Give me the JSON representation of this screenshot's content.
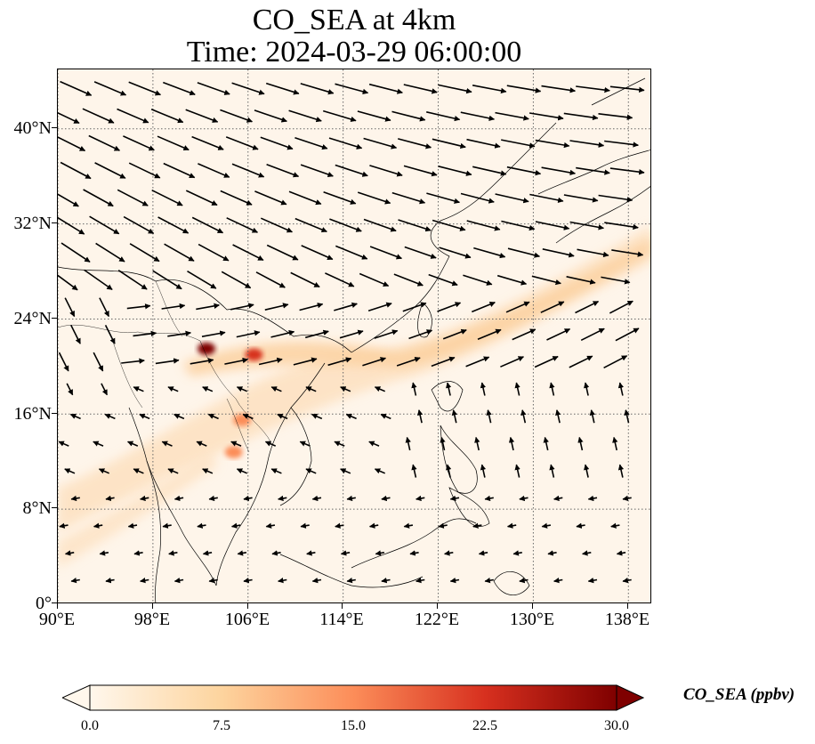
{
  "title": {
    "line1": "CO_SEA at 4km",
    "line2": "Time: 2024-03-29 06:00:00"
  },
  "map": {
    "lon_range": [
      90,
      140
    ],
    "lat_range": [
      0,
      45
    ],
    "lon_ticks": [
      90,
      98,
      106,
      114,
      122,
      130,
      138
    ],
    "lat_ticks": [
      0,
      8,
      16,
      24,
      32,
      40
    ],
    "lon_tick_labels": [
      "90°E",
      "98°E",
      "106°E",
      "114°E",
      "122°E",
      "130°E",
      "138°E"
    ],
    "lat_tick_labels": [
      "0°",
      "8°N",
      "16°N",
      "24°N",
      "32°N",
      "40°N"
    ],
    "gridlines": true,
    "features": [
      "coastlines",
      "country-borders",
      "wind-vectors",
      "co-concentration-field"
    ]
  },
  "colorbar": {
    "label": "CO_SEA (ppbv)",
    "min": 0,
    "max": 30,
    "ticks": [
      "0.0",
      "7.5",
      "15.0",
      "22.5",
      "30.0"
    ],
    "colormap": "OrRd",
    "colors": [
      "#fff7ec",
      "#fdd49e",
      "#fc8d59",
      "#d7301f",
      "#7f0000"
    ],
    "extend": "both"
  },
  "features": {
    "plume": {
      "description": "elevated CO band from northern Indochina toward east of Taiwan and Japan",
      "hotspots": [
        {
          "lon": 102.5,
          "lat": 21.5,
          "value": 28
        },
        {
          "lon": 106.5,
          "lat": 21.0,
          "value": 22
        },
        {
          "lon": 105.5,
          "lat": 15.5,
          "value": 14
        },
        {
          "lon": 104.8,
          "lat": 12.8,
          "value": 13
        }
      ]
    }
  }
}
